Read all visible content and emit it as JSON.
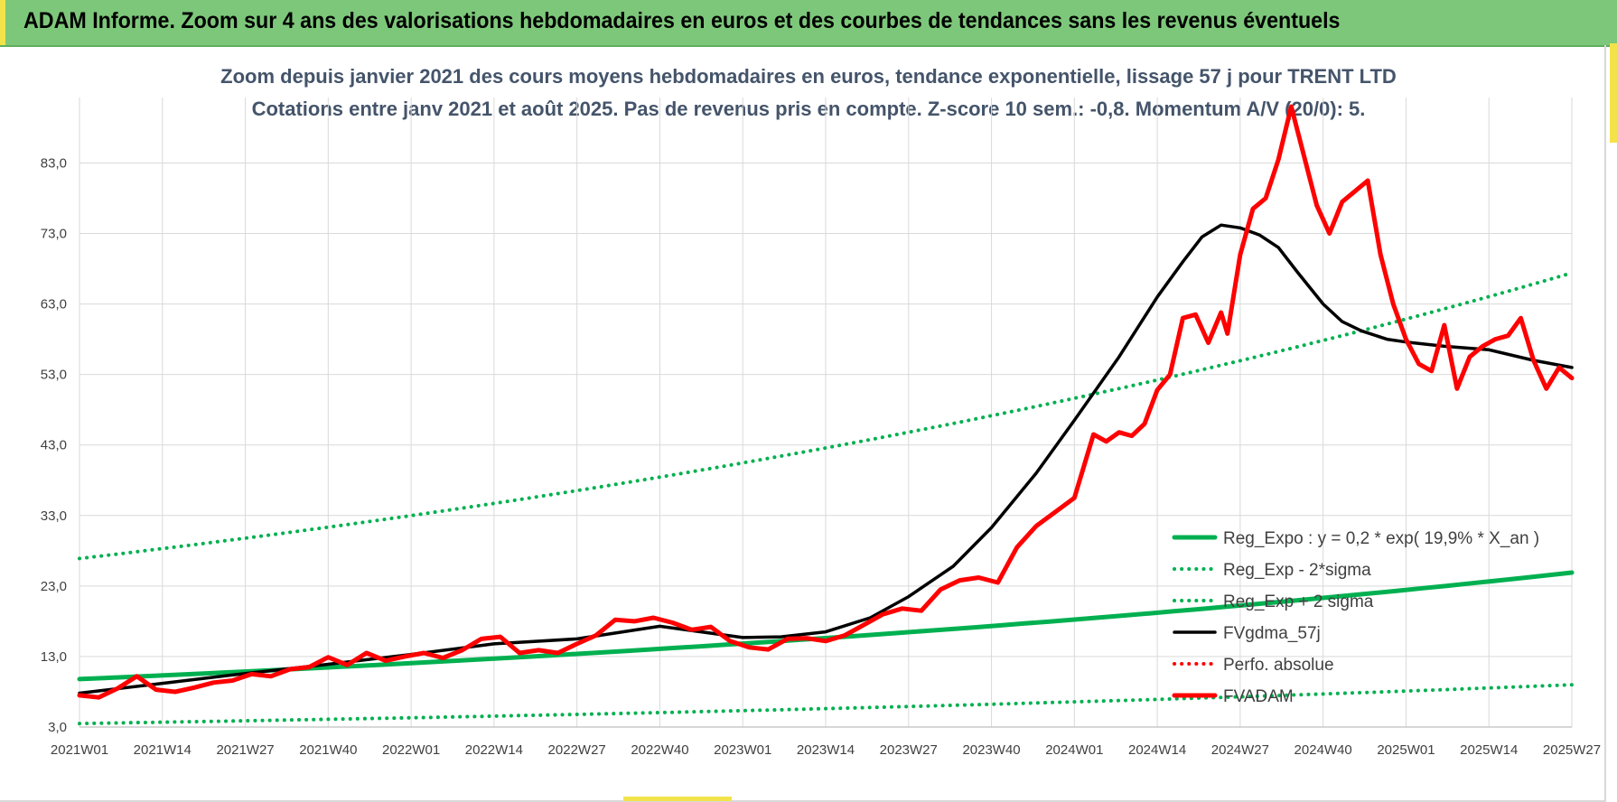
{
  "header": {
    "title": "ADAM Informe. Zoom sur 4 ans des valorisations hebdomadaires en euros et des courbes de tendances sans les revenus éventuels"
  },
  "chart_data": {
    "type": "line",
    "title_line1": "Zoom depuis janvier 2021 des cours moyens hebdomadaires en euros, tendance exponentielle, lissage 57 j pour TRENT LTD",
    "title_line2": "Cotations entre janv 2021 et août 2025.  Pas de revenus pris en compte. Z-score 10 sem.: -0,8. Momentum A/V (20/0): 5.",
    "xlabel": "",
    "ylabel": "",
    "ylim": [
      3,
      91
    ],
    "y_ticks": [
      "3,0",
      "13,0",
      "23,0",
      "33,0",
      "43,0",
      "53,0",
      "63,0",
      "73,0",
      "83,0"
    ],
    "x_ticks": [
      "2021W01",
      "2021W14",
      "2021W27",
      "2021W40",
      "2022W01",
      "2022W14",
      "2022W27",
      "2022W40",
      "2023W01",
      "2023W14",
      "2023W27",
      "2023W40",
      "2024W01",
      "2024W14",
      "2024W27",
      "2024W40",
      "2025W01",
      "2025W14",
      "2025W27"
    ],
    "grid": true,
    "legend_position": "bottom-right",
    "series": [
      {
        "name": "Reg_Expo : y = 0,2 * exp( 19,9% *  X_an )",
        "color": "#00b050",
        "style": "solid-thick",
        "x": [
          0,
          234
        ],
        "y": [
          9.8,
          24.9
        ]
      },
      {
        "name": "Reg_Exp - 2*sigma",
        "color": "#00b050",
        "style": "dotted",
        "x": [
          0,
          234
        ],
        "y": [
          3.5,
          9.0
        ]
      },
      {
        "name": "Reg_Exp + 2 sigma",
        "color": "#00b050",
        "style": "dotted",
        "x": [
          0,
          234
        ],
        "y": [
          26.9,
          67.4
        ]
      },
      {
        "name": "FVgdma_57j",
        "color": "#000000",
        "style": "solid",
        "x": [
          0,
          13,
          26,
          39,
          52,
          65,
          78,
          91,
          104,
          110,
          117,
          124,
          130,
          137,
          143,
          150,
          156,
          163,
          169,
          173,
          176,
          179,
          182,
          185,
          188,
          191,
          195,
          198,
          201,
          205,
          208,
          214,
          221,
          228,
          234
        ],
        "y": [
          7.8,
          9.2,
          10.6,
          11.9,
          13.3,
          14.8,
          15.5,
          17.3,
          15.7,
          15.8,
          16.5,
          18.5,
          21.5,
          25.8,
          31.3,
          39.0,
          46.5,
          55.5,
          64.0,
          69.0,
          72.5,
          74.2,
          73.8,
          72.8,
          71.0,
          67.5,
          63.0,
          60.5,
          59.2,
          58.0,
          57.6,
          57.0,
          56.5,
          55.0,
          54.0
        ]
      },
      {
        "name": "Perfo. absolue",
        "color": "#ff0000",
        "style": "dotted",
        "x": [],
        "y": []
      },
      {
        "name": "FVADAM",
        "color": "#ff0000",
        "style": "solid-thick",
        "x": [
          0,
          3,
          6,
          9,
          12,
          15,
          18,
          21,
          24,
          27,
          30,
          33,
          36,
          39,
          42,
          45,
          48,
          51,
          54,
          57,
          60,
          63,
          66,
          69,
          72,
          75,
          78,
          81,
          84,
          87,
          90,
          93,
          96,
          99,
          102,
          105,
          108,
          111,
          114,
          117,
          120,
          123,
          126,
          129,
          132,
          135,
          138,
          141,
          144,
          147,
          150,
          153,
          156,
          159,
          161,
          163,
          165,
          167,
          169,
          171,
          173,
          175,
          177,
          179,
          180,
          182,
          184,
          186,
          188,
          190,
          192,
          194,
          196,
          198,
          200,
          202,
          204,
          206,
          208,
          210,
          212,
          214,
          216,
          218,
          220,
          222,
          224,
          226,
          228,
          230,
          232,
          234
        ],
        "y": [
          7.5,
          7.2,
          8.5,
          10.2,
          8.3,
          8.0,
          8.6,
          9.3,
          9.6,
          10.5,
          10.2,
          11.2,
          11.5,
          12.9,
          11.8,
          13.5,
          12.4,
          13.0,
          13.5,
          12.8,
          13.9,
          15.5,
          15.8,
          13.5,
          13.9,
          13.5,
          14.8,
          16.0,
          18.2,
          18.0,
          18.5,
          17.8,
          16.8,
          17.2,
          15.2,
          14.3,
          14.0,
          15.5,
          15.6,
          15.2,
          16.0,
          17.5,
          19.0,
          19.8,
          19.5,
          22.5,
          23.8,
          24.2,
          23.5,
          28.5,
          31.5,
          33.5,
          35.5,
          44.5,
          43.5,
          44.8,
          44.3,
          46.0,
          50.8,
          53.0,
          61.0,
          61.5,
          57.5,
          61.8,
          58.8,
          70.0,
          76.5,
          78.0,
          83.5,
          91.0,
          84.0,
          77.0,
          73.0,
          77.5,
          79.0,
          80.5,
          70.0,
          63.0,
          58.0,
          54.5,
          53.5,
          60.0,
          51.0,
          55.5,
          57.0,
          58.0,
          58.5,
          61.0,
          55.0,
          51.0,
          54.0,
          52.5
        ]
      }
    ]
  }
}
